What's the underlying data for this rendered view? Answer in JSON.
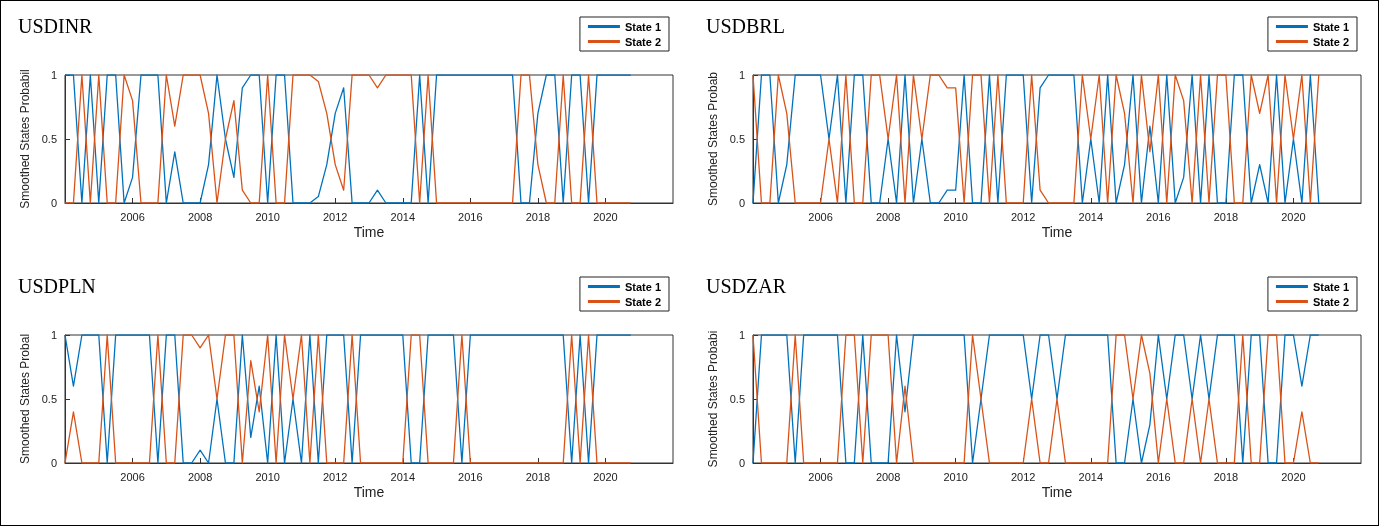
{
  "chart_data": [
    {
      "type": "line",
      "title": "USDINR",
      "xlabel": "Time",
      "ylabel": "Smoothed States Probabil",
      "xlim": [
        2004,
        2022
      ],
      "xticks": [
        2006,
        2008,
        2010,
        2012,
        2014,
        2016,
        2018,
        2020
      ],
      "ylim": [
        0,
        1
      ],
      "yticks": [
        0,
        0.5,
        1
      ],
      "grid": false,
      "legend": "top right",
      "marker": "none",
      "line_style": "solid",
      "x": [
        2004,
        2004.25,
        2004.5,
        2004.75,
        2005,
        2005.25,
        2005.5,
        2005.75,
        2006,
        2006.25,
        2006.5,
        2006.75,
        2007,
        2007.25,
        2007.5,
        2007.75,
        2008,
        2008.25,
        2008.5,
        2008.75,
        2009,
        2009.25,
        2009.5,
        2009.75,
        2010,
        2010.25,
        2010.5,
        2010.75,
        2011,
        2011.25,
        2011.5,
        2011.75,
        2012,
        2012.25,
        2012.5,
        2012.75,
        2013,
        2013.25,
        2013.5,
        2013.75,
        2014,
        2014.25,
        2014.5,
        2014.75,
        2015,
        2015.25,
        2015.5,
        2015.75,
        2016,
        2016.25,
        2016.5,
        2016.75,
        2017,
        2017.25,
        2017.5,
        2017.75,
        2018,
        2018.25,
        2018.5,
        2018.75,
        2019,
        2019.25,
        2019.5,
        2019.75,
        2020,
        2020.25,
        2020.5,
        2020.75
      ],
      "series": [
        {
          "name": "State 1",
          "color": "#0072bd",
          "values": [
            1,
            1,
            0,
            1,
            0,
            1,
            1,
            0,
            0.2,
            1,
            1,
            1,
            0,
            0.4,
            0,
            0,
            0,
            0.3,
            1,
            0.5,
            0.2,
            0.9,
            1,
            1,
            0,
            1,
            1,
            0,
            0,
            0,
            0.05,
            0.3,
            0.7,
            0.9,
            0,
            0,
            0,
            0.1,
            0,
            0,
            0,
            0,
            1,
            0,
            1,
            1,
            1,
            1,
            1,
            1,
            1,
            1,
            1,
            1,
            0,
            0,
            0.7,
            1,
            1,
            0,
            1,
            1,
            0,
            1,
            1,
            1,
            1,
            1
          ]
        },
        {
          "name": "State 2",
          "color": "#d95319",
          "values": [
            0,
            0,
            1,
            0,
            1,
            0,
            0,
            1,
            0.8,
            0,
            0,
            0,
            1,
            0.6,
            1,
            1,
            1,
            0.7,
            0,
            0.5,
            0.8,
            0.1,
            0,
            0,
            1,
            0,
            0,
            1,
            1,
            1,
            0.95,
            0.7,
            0.3,
            0.1,
            1,
            1,
            1,
            0.9,
            1,
            1,
            1,
            1,
            0,
            1,
            0,
            0,
            0,
            0,
            0,
            0,
            0,
            0,
            0,
            0,
            1,
            1,
            0.3,
            0,
            0,
            1,
            0,
            0,
            1,
            0,
            0,
            0,
            0,
            0
          ]
        }
      ]
    },
    {
      "type": "line",
      "title": "USDBRL",
      "xlabel": "Time",
      "ylabel": "Smoothed States Probab",
      "xlim": [
        2004,
        2022
      ],
      "xticks": [
        2006,
        2008,
        2010,
        2012,
        2014,
        2016,
        2018,
        2020
      ],
      "ylim": [
        0,
        1
      ],
      "yticks": [
        0,
        0.5,
        1
      ],
      "grid": false,
      "legend": "top right",
      "marker": "none",
      "line_style": "solid",
      "x": [
        2004,
        2004.25,
        2004.5,
        2004.75,
        2005,
        2005.25,
        2005.5,
        2005.75,
        2006,
        2006.25,
        2006.5,
        2006.75,
        2007,
        2007.25,
        2007.5,
        2007.75,
        2008,
        2008.25,
        2008.5,
        2008.75,
        2009,
        2009.25,
        2009.5,
        2009.75,
        2010,
        2010.25,
        2010.5,
        2010.75,
        2011,
        2011.25,
        2011.5,
        2011.75,
        2012,
        2012.25,
        2012.5,
        2012.75,
        2013,
        2013.25,
        2013.5,
        2013.75,
        2014,
        2014.25,
        2014.5,
        2014.75,
        2015,
        2015.25,
        2015.5,
        2015.75,
        2016,
        2016.25,
        2016.5,
        2016.75,
        2017,
        2017.25,
        2017.5,
        2017.75,
        2018,
        2018.25,
        2018.5,
        2018.75,
        2019,
        2019.25,
        2019.5,
        2019.75,
        2020,
        2020.25,
        2020.5,
        2020.75
      ],
      "series": [
        {
          "name": "State 1",
          "color": "#0072bd",
          "values": [
            0,
            1,
            1,
            0,
            0.3,
            1,
            1,
            1,
            1,
            0.5,
            1,
            0,
            1,
            1,
            0,
            0,
            0.5,
            0,
            1,
            0,
            0.5,
            0,
            0,
            0.1,
            0.1,
            1,
            0,
            0,
            1,
            0,
            1,
            1,
            1,
            0,
            0.9,
            1,
            1,
            1,
            1,
            0,
            0.5,
            0,
            1,
            0,
            0.3,
            1,
            0,
            0.6,
            0,
            1,
            0,
            0.2,
            1,
            0,
            1,
            0,
            0,
            1,
            1,
            0,
            0.3,
            0,
            1,
            0,
            0.5,
            0,
            1,
            0
          ]
        },
        {
          "name": "State 2",
          "color": "#d95319",
          "values": [
            1,
            0,
            0,
            1,
            0.7,
            0,
            0,
            0,
            0,
            0.5,
            0,
            1,
            0,
            0,
            1,
            1,
            0.5,
            1,
            0,
            1,
            0.5,
            1,
            1,
            0.9,
            0.9,
            0,
            1,
            1,
            0,
            1,
            0,
            0,
            0,
            1,
            0.1,
            0,
            0,
            0,
            0,
            1,
            0.5,
            1,
            0,
            1,
            0.7,
            0,
            1,
            0.4,
            1,
            0,
            1,
            0.8,
            0,
            1,
            0,
            1,
            1,
            0,
            0,
            1,
            0.7,
            1,
            0,
            1,
            0.5,
            1,
            0,
            1
          ]
        }
      ]
    },
    {
      "type": "line",
      "title": "USDPLN",
      "xlabel": "Time",
      "ylabel": "Smoothed States Probal",
      "xlim": [
        2004,
        2022
      ],
      "xticks": [
        2006,
        2008,
        2010,
        2012,
        2014,
        2016,
        2018,
        2020
      ],
      "ylim": [
        0,
        1
      ],
      "yticks": [
        0,
        0.5,
        1
      ],
      "grid": false,
      "legend": "top right",
      "marker": "none",
      "line_style": "solid",
      "x": [
        2004,
        2004.25,
        2004.5,
        2004.75,
        2005,
        2005.25,
        2005.5,
        2005.75,
        2006,
        2006.25,
        2006.5,
        2006.75,
        2007,
        2007.25,
        2007.5,
        2007.75,
        2008,
        2008.25,
        2008.5,
        2008.75,
        2009,
        2009.25,
        2009.5,
        2009.75,
        2010,
        2010.25,
        2010.5,
        2010.75,
        2011,
        2011.25,
        2011.5,
        2011.75,
        2012,
        2012.25,
        2012.5,
        2012.75,
        2013,
        2013.25,
        2013.5,
        2013.75,
        2014,
        2014.25,
        2014.5,
        2014.75,
        2015,
        2015.25,
        2015.5,
        2015.75,
        2016,
        2016.25,
        2016.5,
        2016.75,
        2017,
        2017.25,
        2017.5,
        2017.75,
        2018,
        2018.25,
        2018.5,
        2018.75,
        2019,
        2019.25,
        2019.5,
        2019.75,
        2020,
        2020.25,
        2020.5,
        2020.75
      ],
      "series": [
        {
          "name": "State 1",
          "color": "#0072bd",
          "values": [
            1,
            0.6,
            1,
            1,
            1,
            0,
            1,
            1,
            1,
            1,
            1,
            0,
            1,
            1,
            0,
            0,
            0.1,
            0,
            0.5,
            0,
            0,
            1,
            0.2,
            0.6,
            0,
            1,
            0,
            0.5,
            0,
            1,
            0,
            1,
            1,
            1,
            0,
            1,
            1,
            1,
            1,
            1,
            1,
            0,
            0,
            1,
            1,
            1,
            1,
            0,
            1,
            1,
            1,
            1,
            1,
            1,
            1,
            1,
            1,
            1,
            1,
            1,
            0,
            1,
            0,
            1,
            1,
            1,
            1,
            1
          ]
        },
        {
          "name": "State 2",
          "color": "#d95319",
          "values": [
            0,
            0.4,
            0,
            0,
            0,
            1,
            0,
            0,
            0,
            0,
            0,
            1,
            0,
            0,
            1,
            1,
            0.9,
            1,
            0.5,
            1,
            1,
            0,
            0.8,
            0.4,
            1,
            0,
            1,
            0.5,
            1,
            0,
            1,
            0,
            0,
            0,
            1,
            0,
            0,
            0,
            0,
            0,
            0,
            1,
            1,
            0,
            0,
            0,
            0,
            1,
            0,
            0,
            0,
            0,
            0,
            0,
            0,
            0,
            0,
            0,
            0,
            0,
            1,
            0,
            1,
            0,
            0,
            0,
            0,
            0
          ]
        }
      ]
    },
    {
      "type": "line",
      "title": "USDZAR",
      "xlabel": "Time",
      "ylabel": "Smoothed States Probabi",
      "xlim": [
        2004,
        2022
      ],
      "xticks": [
        2006,
        2008,
        2010,
        2012,
        2014,
        2016,
        2018,
        2020
      ],
      "ylim": [
        0,
        1
      ],
      "yticks": [
        0,
        0.5,
        1
      ],
      "grid": false,
      "legend": "top right",
      "marker": "none",
      "line_style": "solid",
      "x": [
        2004,
        2004.25,
        2004.5,
        2004.75,
        2005,
        2005.25,
        2005.5,
        2005.75,
        2006,
        2006.25,
        2006.5,
        2006.75,
        2007,
        2007.25,
        2007.5,
        2007.75,
        2008,
        2008.25,
        2008.5,
        2008.75,
        2009,
        2009.25,
        2009.5,
        2009.75,
        2010,
        2010.25,
        2010.5,
        2010.75,
        2011,
        2011.25,
        2011.5,
        2011.75,
        2012,
        2012.25,
        2012.5,
        2012.75,
        2013,
        2013.25,
        2013.5,
        2013.75,
        2014,
        2014.25,
        2014.5,
        2014.75,
        2015,
        2015.25,
        2015.5,
        2015.75,
        2016,
        2016.25,
        2016.5,
        2016.75,
        2017,
        2017.25,
        2017.5,
        2017.75,
        2018,
        2018.25,
        2018.5,
        2018.75,
        2019,
        2019.25,
        2019.5,
        2019.75,
        2020,
        2020.25,
        2020.5,
        2020.75
      ],
      "series": [
        {
          "name": "State 1",
          "color": "#0072bd",
          "values": [
            0,
            1,
            1,
            1,
            1,
            0,
            1,
            1,
            1,
            1,
            1,
            0,
            0,
            1,
            0,
            0,
            0,
            1,
            0.4,
            1,
            1,
            1,
            1,
            1,
            1,
            1,
            0,
            0.5,
            1,
            1,
            1,
            1,
            1,
            0.5,
            1,
            1,
            0.5,
            1,
            1,
            1,
            1,
            1,
            1,
            0,
            0,
            0.5,
            0,
            0.3,
            1,
            0.5,
            1,
            1,
            0.5,
            1,
            0.5,
            1,
            1,
            1,
            0,
            1,
            1,
            0,
            0,
            1,
            1,
            0.6,
            1,
            1
          ]
        },
        {
          "name": "State 2",
          "color": "#d95319",
          "values": [
            1,
            0,
            0,
            0,
            0,
            1,
            0,
            0,
            0,
            0,
            0,
            1,
            1,
            0,
            1,
            1,
            1,
            0,
            0.6,
            0,
            0,
            0,
            0,
            0,
            0,
            0,
            1,
            0.5,
            0,
            0,
            0,
            0,
            0,
            0.5,
            0,
            0,
            0.5,
            0,
            0,
            0,
            0,
            0,
            0,
            1,
            1,
            0.5,
            1,
            0.7,
            0,
            0.5,
            0,
            0,
            0.5,
            0,
            0.5,
            0,
            0,
            0,
            1,
            0,
            0,
            1,
            1,
            0,
            0,
            0.4,
            0,
            0
          ]
        }
      ]
    }
  ]
}
